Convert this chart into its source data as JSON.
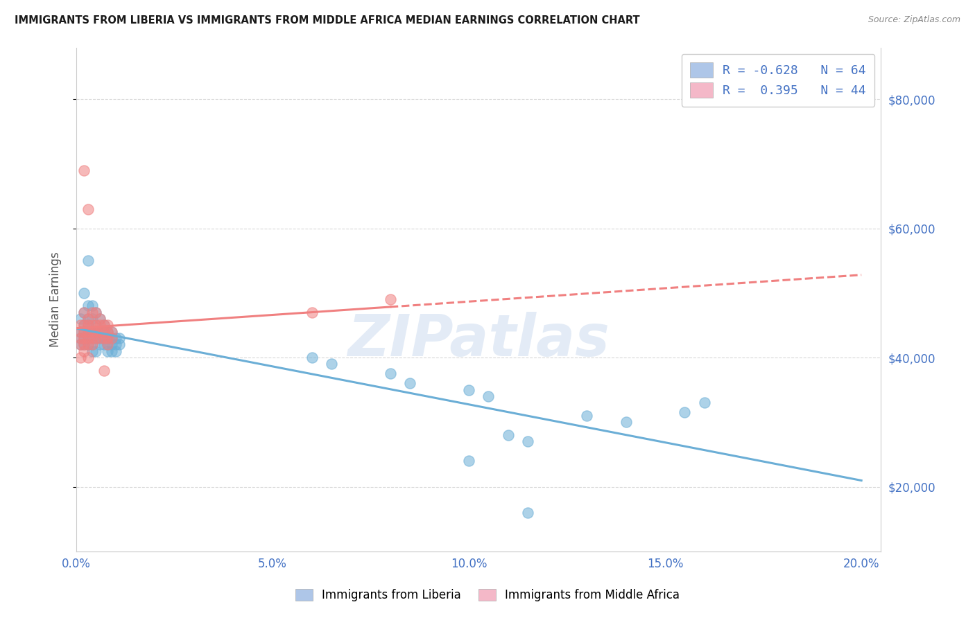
{
  "title": "IMMIGRANTS FROM LIBERIA VS IMMIGRANTS FROM MIDDLE AFRICA MEDIAN EARNINGS CORRELATION CHART",
  "source_text": "Source: ZipAtlas.com",
  "ylabel": "Median Earnings",
  "xlim": [
    0.0,
    0.205
  ],
  "ylim": [
    10000,
    88000
  ],
  "ytick_labels": [
    "$20,000",
    "$40,000",
    "$60,000",
    "$80,000"
  ],
  "ytick_values": [
    20000,
    40000,
    60000,
    80000
  ],
  "xtick_labels": [
    "0.0%",
    "5.0%",
    "10.0%",
    "15.0%",
    "20.0%"
  ],
  "xtick_values": [
    0.0,
    0.05,
    0.1,
    0.15,
    0.2
  ],
  "liberia_color": "#6baed6",
  "middle_africa_color": "#f08080",
  "watermark_text": "ZIPatlas",
  "background_color": "#ffffff",
  "grid_color": "#d9d9d9",
  "axis_label_color": "#4472c4",
  "title_color": "#1a1a1a",
  "liberia_scatter": [
    [
      0.001,
      46000
    ],
    [
      0.001,
      44000
    ],
    [
      0.001,
      43000
    ],
    [
      0.001,
      42000
    ],
    [
      0.002,
      50000
    ],
    [
      0.002,
      47000
    ],
    [
      0.002,
      45000
    ],
    [
      0.002,
      44000
    ],
    [
      0.002,
      43000
    ],
    [
      0.002,
      42000
    ],
    [
      0.003,
      55000
    ],
    [
      0.003,
      48000
    ],
    [
      0.003,
      46000
    ],
    [
      0.003,
      45000
    ],
    [
      0.003,
      44000
    ],
    [
      0.003,
      43000
    ],
    [
      0.003,
      42000
    ],
    [
      0.004,
      48000
    ],
    [
      0.004,
      46000
    ],
    [
      0.004,
      44000
    ],
    [
      0.004,
      43000
    ],
    [
      0.004,
      42000
    ],
    [
      0.004,
      41000
    ],
    [
      0.005,
      47000
    ],
    [
      0.005,
      45000
    ],
    [
      0.005,
      44000
    ],
    [
      0.005,
      43000
    ],
    [
      0.005,
      41000
    ],
    [
      0.006,
      46000
    ],
    [
      0.006,
      44000
    ],
    [
      0.006,
      43000
    ],
    [
      0.006,
      42000
    ],
    [
      0.007,
      45000
    ],
    [
      0.007,
      44000
    ],
    [
      0.007,
      43000
    ],
    [
      0.007,
      42000
    ],
    [
      0.008,
      44000
    ],
    [
      0.008,
      43000
    ],
    [
      0.008,
      42000
    ],
    [
      0.008,
      41000
    ],
    [
      0.009,
      44000
    ],
    [
      0.009,
      43000
    ],
    [
      0.009,
      42000
    ],
    [
      0.009,
      41000
    ],
    [
      0.01,
      43000
    ],
    [
      0.01,
      42000
    ],
    [
      0.01,
      41000
    ],
    [
      0.011,
      43000
    ],
    [
      0.011,
      42000
    ],
    [
      0.06,
      40000
    ],
    [
      0.065,
      39000
    ],
    [
      0.08,
      37500
    ],
    [
      0.085,
      36000
    ],
    [
      0.1,
      35000
    ],
    [
      0.105,
      34000
    ],
    [
      0.11,
      28000
    ],
    [
      0.115,
      27000
    ],
    [
      0.13,
      31000
    ],
    [
      0.14,
      30000
    ],
    [
      0.155,
      31500
    ],
    [
      0.1,
      24000
    ],
    [
      0.115,
      16000
    ],
    [
      0.16,
      33000
    ]
  ],
  "middle_africa_scatter": [
    [
      0.001,
      45000
    ],
    [
      0.001,
      44000
    ],
    [
      0.001,
      43000
    ],
    [
      0.001,
      42000
    ],
    [
      0.001,
      40000
    ],
    [
      0.002,
      69000
    ],
    [
      0.002,
      47000
    ],
    [
      0.002,
      45000
    ],
    [
      0.002,
      44000
    ],
    [
      0.002,
      43000
    ],
    [
      0.002,
      42000
    ],
    [
      0.002,
      41000
    ],
    [
      0.003,
      63000
    ],
    [
      0.003,
      46000
    ],
    [
      0.003,
      45000
    ],
    [
      0.003,
      44000
    ],
    [
      0.003,
      43000
    ],
    [
      0.003,
      42000
    ],
    [
      0.003,
      40000
    ],
    [
      0.004,
      47000
    ],
    [
      0.004,
      45000
    ],
    [
      0.004,
      44000
    ],
    [
      0.004,
      43000
    ],
    [
      0.004,
      42000
    ],
    [
      0.005,
      47000
    ],
    [
      0.005,
      45000
    ],
    [
      0.005,
      44000
    ],
    [
      0.005,
      43000
    ],
    [
      0.006,
      46000
    ],
    [
      0.006,
      45000
    ],
    [
      0.006,
      44000
    ],
    [
      0.006,
      43000
    ],
    [
      0.007,
      45000
    ],
    [
      0.007,
      44000
    ],
    [
      0.007,
      38000
    ],
    [
      0.007,
      43000
    ],
    [
      0.008,
      45000
    ],
    [
      0.008,
      44000
    ],
    [
      0.008,
      43000
    ],
    [
      0.008,
      42000
    ],
    [
      0.009,
      44000
    ],
    [
      0.009,
      43000
    ],
    [
      0.06,
      47000
    ],
    [
      0.08,
      49000
    ]
  ]
}
